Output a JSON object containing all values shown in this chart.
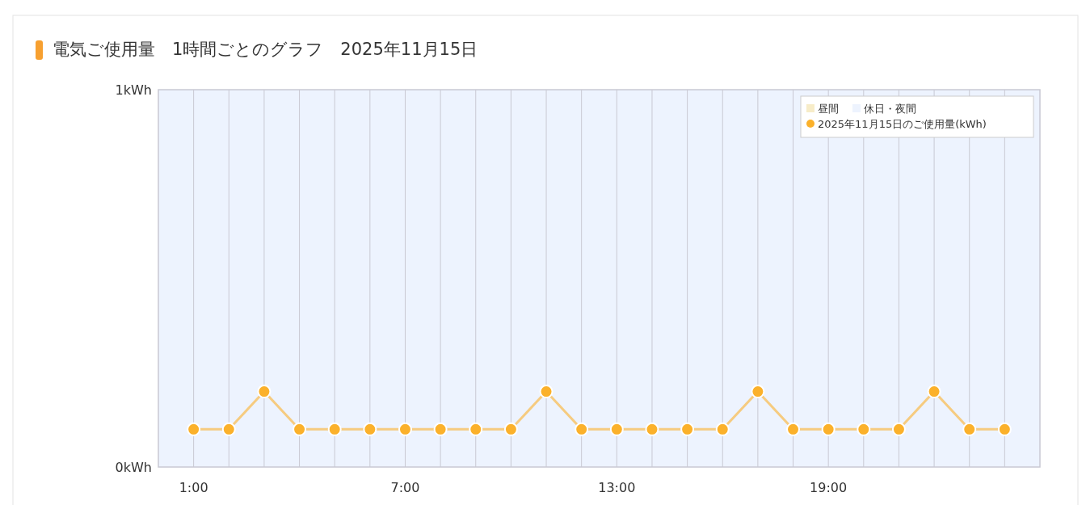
{
  "chart_data": {
    "type": "line",
    "title": "電気ご使用量　1時間ごとのグラフ　2025年11月15日",
    "x": [
      1,
      2,
      3,
      4,
      5,
      6,
      7,
      8,
      9,
      10,
      11,
      12,
      13,
      14,
      15,
      16,
      17,
      18,
      19,
      20,
      21,
      22,
      23,
      24
    ],
    "series": [
      {
        "name": "2025年11月15日のご使用量(kWh)",
        "color": "#fbb12b",
        "values": [
          0.1,
          0.1,
          0.2,
          0.1,
          0.1,
          0.1,
          0.1,
          0.1,
          0.1,
          0.1,
          0.2,
          0.1,
          0.1,
          0.1,
          0.1,
          0.1,
          0.2,
          0.1,
          0.1,
          0.1,
          0.1,
          0.2,
          0.1,
          0.1
        ]
      }
    ],
    "xlim": [
      0,
      25
    ],
    "xticks": [
      {
        "value": 1,
        "label": "1:00"
      },
      {
        "value": 2,
        "label": null
      },
      {
        "value": 3,
        "label": null
      },
      {
        "value": 4,
        "label": null
      },
      {
        "value": 5,
        "label": null
      },
      {
        "value": 6,
        "label": null
      },
      {
        "value": 7,
        "label": "7:00"
      },
      {
        "value": 8,
        "label": null
      },
      {
        "value": 9,
        "label": null
      },
      {
        "value": 10,
        "label": null
      },
      {
        "value": 11,
        "label": null
      },
      {
        "value": 12,
        "label": null
      },
      {
        "value": 13,
        "label": "13:00"
      },
      {
        "value": 14,
        "label": null
      },
      {
        "value": 15,
        "label": null
      },
      {
        "value": 16,
        "label": null
      },
      {
        "value": 17,
        "label": null
      },
      {
        "value": 18,
        "label": null
      },
      {
        "value": 19,
        "label": "19:00"
      },
      {
        "value": 20,
        "label": null
      },
      {
        "value": 21,
        "label": null
      },
      {
        "value": 22,
        "label": null
      },
      {
        "value": 23,
        "label": null
      },
      {
        "value": 24,
        "label": null
      }
    ],
    "ylim": [
      0,
      1
    ],
    "yticks": [
      {
        "value": 0,
        "label": "0kWh"
      },
      {
        "value": 1,
        "label": "1kWh"
      }
    ],
    "bands": [
      {
        "axis": "x",
        "from": 0,
        "to": 25,
        "label": "休日・夜間",
        "color": "#edf3fe"
      }
    ],
    "annotations": [
      "昼間"
    ],
    "grid": "x",
    "marker": "circle",
    "line_style": "solid",
    "legend": "top right"
  }
}
